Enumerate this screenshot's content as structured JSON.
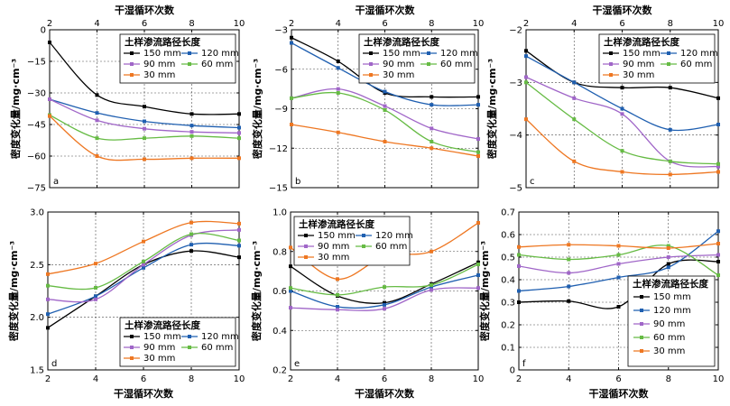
{
  "colors": {
    "150 mm": "#000000",
    "120 mm": "#1f5fb0",
    "90 mm": "#a066c8",
    "60 mm": "#66bb44",
    "30 mm": "#ee7722"
  },
  "chart_data": [
    {
      "type": "line",
      "letter": "a",
      "x": [
        2,
        4,
        6,
        8,
        10
      ],
      "xlim": [
        2,
        10
      ],
      "xticks": [
        "2",
        "4",
        "6",
        "8",
        "10"
      ],
      "xaxis_pos": "top",
      "xlabel": "干湿循环次数",
      "ylabel": "密度变化量/mg·cm⁻³",
      "ylim": [
        -75,
        0
      ],
      "yticks": [
        0,
        -15,
        -30,
        -45,
        -60,
        -75
      ],
      "ytick_labels": [
        "0",
        "−15",
        "−30",
        "−45",
        "−60",
        "−75"
      ],
      "legend_title": "土样渗流路径长度",
      "legend_layout": "2col",
      "legend_pos": "top-right",
      "series": [
        {
          "name": "150 mm",
          "values": [
            -6,
            -31,
            -36.5,
            -40,
            -40
          ]
        },
        {
          "name": "120 mm",
          "values": [
            -33,
            -39.5,
            -43.5,
            -45.5,
            -46.5
          ]
        },
        {
          "name": "90 mm",
          "values": [
            -33,
            -43,
            -47,
            -48.5,
            -49
          ]
        },
        {
          "name": "60 mm",
          "values": [
            -40.5,
            -51.5,
            -51.5,
            -50.5,
            -51.5
          ]
        },
        {
          "name": "30 mm",
          "values": [
            -41,
            -60,
            -61.5,
            -61,
            -61
          ]
        }
      ]
    },
    {
      "type": "line",
      "letter": "b",
      "x": [
        2,
        4,
        6,
        8,
        10
      ],
      "xlim": [
        2,
        10
      ],
      "xticks": [
        "2",
        "4",
        "6",
        "8",
        "10"
      ],
      "xaxis_pos": "top",
      "xlabel": "干湿循环次数",
      "ylabel": "密度变化量/mg·cm⁻³",
      "ylim": [
        -15,
        -3
      ],
      "yticks": [
        -3,
        -6,
        -9,
        -12,
        -15
      ],
      "ytick_labels": [
        "−3",
        "−6",
        "−9",
        "−12",
        "−15"
      ],
      "legend_title": "土样渗流路径长度",
      "legend_layout": "2col",
      "legend_pos": "top-right",
      "series": [
        {
          "name": "150 mm",
          "values": [
            -3.6,
            -5.4,
            -7.8,
            -8.1,
            -8.1
          ]
        },
        {
          "name": "120 mm",
          "values": [
            -4.0,
            -5.9,
            -7.7,
            -8.7,
            -8.7
          ]
        },
        {
          "name": "90 mm",
          "values": [
            -8.2,
            -7.5,
            -8.8,
            -10.5,
            -11.3
          ]
        },
        {
          "name": "60 mm",
          "values": [
            -8.2,
            -7.8,
            -9.1,
            -11.5,
            -12.3
          ]
        },
        {
          "name": "30 mm",
          "values": [
            -10.2,
            -10.8,
            -11.5,
            -12.0,
            -12.6
          ]
        }
      ]
    },
    {
      "type": "line",
      "letter": "c",
      "x": [
        2,
        4,
        6,
        8,
        10
      ],
      "xlim": [
        2,
        10
      ],
      "xticks": [
        "2",
        "4",
        "6",
        "8",
        "10"
      ],
      "xaxis_pos": "top",
      "xlabel": "干湿循环次数",
      "ylabel": "密度变化量/mg·cm⁻³",
      "ylim": [
        -5,
        -2
      ],
      "yticks": [
        -2,
        -3,
        -4,
        -5
      ],
      "ytick_labels": [
        "−2",
        "−3",
        "−4",
        "−5"
      ],
      "legend_title": "土样渗流路径长度",
      "legend_layout": "2col",
      "legend_pos": "top-right",
      "series": [
        {
          "name": "150 mm",
          "values": [
            -2.4,
            -3.0,
            -3.1,
            -3.1,
            -3.3
          ]
        },
        {
          "name": "120 mm",
          "values": [
            -2.5,
            -3.0,
            -3.5,
            -3.9,
            -3.8
          ]
        },
        {
          "name": "90 mm",
          "values": [
            -2.9,
            -3.3,
            -3.6,
            -4.5,
            -4.6
          ]
        },
        {
          "name": "60 mm",
          "values": [
            -3.0,
            -3.7,
            -4.3,
            -4.5,
            -4.55
          ]
        },
        {
          "name": "30 mm",
          "values": [
            -3.7,
            -4.5,
            -4.7,
            -4.75,
            -4.7
          ]
        }
      ]
    },
    {
      "type": "line",
      "letter": "d",
      "x": [
        2,
        4,
        6,
        8,
        10
      ],
      "xlim": [
        2,
        10
      ],
      "xticks": [
        "2",
        "4",
        "6",
        "8",
        "10"
      ],
      "xaxis_pos": "bottom",
      "xlabel": "干湿循环次数",
      "ylabel": "密度变化量/mg·cm⁻³",
      "ylim": [
        1.5,
        3.0
      ],
      "yticks": [
        1.5,
        2.0,
        2.5,
        3.0
      ],
      "ytick_labels": [
        "1.5",
        "2.0",
        "2.5",
        "3.0"
      ],
      "legend_title": "土样渗流路径长度",
      "legend_layout": "2col",
      "legend_pos": "bottom-right",
      "series": [
        {
          "name": "150 mm",
          "values": [
            1.9,
            2.2,
            2.5,
            2.63,
            2.57
          ]
        },
        {
          "name": "120 mm",
          "values": [
            2.03,
            2.2,
            2.47,
            2.69,
            2.68
          ]
        },
        {
          "name": "90 mm",
          "values": [
            2.17,
            2.17,
            2.5,
            2.78,
            2.83
          ]
        },
        {
          "name": "60 mm",
          "values": [
            2.3,
            2.28,
            2.53,
            2.79,
            2.73
          ]
        },
        {
          "name": "30 mm",
          "values": [
            2.41,
            2.51,
            2.72,
            2.9,
            2.89
          ]
        }
      ]
    },
    {
      "type": "line",
      "letter": "e",
      "x": [
        2,
        4,
        6,
        8,
        10
      ],
      "xlim": [
        2,
        10
      ],
      "xticks": [
        "2",
        "4",
        "6",
        "8",
        "10"
      ],
      "xaxis_pos": "bottom",
      "xlabel": "干湿循环次数",
      "ylabel": "密度变化量/mg·cm⁻³",
      "ylim": [
        0.2,
        1.0
      ],
      "yticks": [
        0.2,
        0.4,
        0.6,
        0.8,
        1.0
      ],
      "ytick_labels": [
        "0.2",
        "0.4",
        "0.6",
        "0.8",
        "1.0"
      ],
      "legend_title": "土样渗流路径长度",
      "legend_layout": "2col",
      "legend_pos": "top-left",
      "series": [
        {
          "name": "150 mm",
          "values": [
            0.725,
            0.575,
            0.54,
            0.635,
            0.745
          ]
        },
        {
          "name": "120 mm",
          "values": [
            0.6,
            0.52,
            0.53,
            0.62,
            0.68
          ]
        },
        {
          "name": "90 mm",
          "values": [
            0.515,
            0.505,
            0.51,
            0.605,
            0.615
          ]
        },
        {
          "name": "60 mm",
          "values": [
            0.615,
            0.58,
            0.62,
            0.63,
            0.735
          ]
        },
        {
          "name": "30 mm",
          "values": [
            0.82,
            0.66,
            0.775,
            0.8,
            0.945
          ]
        }
      ]
    },
    {
      "type": "line",
      "letter": "f",
      "x": [
        2,
        4,
        6,
        8,
        10
      ],
      "xlim": [
        2,
        10
      ],
      "xticks": [
        "2",
        "4",
        "6",
        "8",
        "10"
      ],
      "xaxis_pos": "bottom",
      "xlabel": "干湿循环次数",
      "ylabel": "密度变化量/mg·cm⁻³",
      "ylim": [
        0,
        0.7
      ],
      "yticks": [
        0,
        0.1,
        0.2,
        0.3,
        0.4,
        0.5,
        0.6,
        0.7
      ],
      "ytick_labels": [
        "0",
        "0.1",
        "0.2",
        "0.3",
        "0.4",
        "0.5",
        "0.6",
        "0.7"
      ],
      "legend_title": "土样渗流路径长度",
      "legend_layout": "1col",
      "legend_pos": "bottom-right",
      "series": [
        {
          "name": "150 mm",
          "values": [
            0.3,
            0.305,
            0.28,
            0.47,
            0.48
          ]
        },
        {
          "name": "120 mm",
          "values": [
            0.35,
            0.37,
            0.41,
            0.455,
            0.615
          ]
        },
        {
          "name": "90 mm",
          "values": [
            0.46,
            0.43,
            0.47,
            0.5,
            0.51
          ]
        },
        {
          "name": "60 mm",
          "values": [
            0.51,
            0.49,
            0.51,
            0.55,
            0.42
          ]
        },
        {
          "name": "30 mm",
          "values": [
            0.545,
            0.555,
            0.55,
            0.54,
            0.56
          ]
        }
      ]
    }
  ]
}
